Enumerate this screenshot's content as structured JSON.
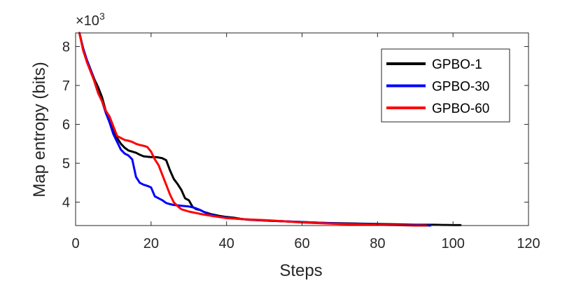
{
  "chart_data": {
    "type": "line",
    "title": "",
    "xlabel": "Steps",
    "ylabel": "Map entropy (bits)",
    "y_multiplier_label": "×10",
    "y_multiplier_exponent": "3",
    "xlim": [
      0,
      120
    ],
    "ylim": [
      3.4,
      8.35
    ],
    "x_ticks": [
      0,
      20,
      40,
      60,
      80,
      100,
      120
    ],
    "y_ticks": [
      4,
      5,
      6,
      7,
      8
    ],
    "grid": false,
    "legend_position": "top-right",
    "series": [
      {
        "name": "GPBO-1",
        "color": "#000000",
        "x": [
          1,
          2,
          3,
          4,
          5,
          6,
          7,
          8,
          9,
          10,
          11,
          12,
          13,
          14,
          15,
          16,
          17,
          18,
          19,
          20,
          21,
          22,
          23,
          24,
          25,
          26,
          27,
          28,
          29,
          30,
          31,
          32,
          33,
          34,
          35,
          36,
          38,
          40,
          42,
          44,
          46,
          48,
          50,
          55,
          60,
          65,
          70,
          75,
          80,
          85,
          90,
          95,
          100,
          102
        ],
        "y": [
          8.35,
          7.95,
          7.65,
          7.4,
          7.15,
          6.95,
          6.7,
          6.35,
          6.1,
          5.85,
          5.65,
          5.5,
          5.4,
          5.33,
          5.3,
          5.27,
          5.22,
          5.18,
          5.17,
          5.16,
          5.16,
          5.15,
          5.13,
          5.08,
          4.82,
          4.6,
          4.47,
          4.32,
          4.1,
          4.05,
          3.88,
          3.82,
          3.8,
          3.75,
          3.72,
          3.69,
          3.65,
          3.62,
          3.6,
          3.57,
          3.55,
          3.54,
          3.53,
          3.51,
          3.49,
          3.47,
          3.46,
          3.45,
          3.44,
          3.43,
          3.42,
          3.42,
          3.41,
          3.41
        ]
      },
      {
        "name": "GPBO-30",
        "color": "#0000ff",
        "x": [
          1,
          2,
          3,
          4,
          5,
          6,
          7,
          8,
          9,
          10,
          11,
          12,
          13,
          14,
          15,
          16,
          17,
          18,
          19,
          20,
          21,
          22,
          23,
          24,
          25,
          26,
          27,
          28,
          29,
          30,
          31,
          32,
          33,
          35,
          37,
          40,
          45,
          50,
          55,
          60,
          65,
          70,
          75,
          80,
          85,
          90,
          94
        ],
        "y": [
          8.35,
          7.95,
          7.65,
          7.4,
          7.1,
          6.8,
          6.6,
          6.3,
          6.05,
          5.75,
          5.55,
          5.35,
          5.25,
          5.2,
          5.1,
          4.65,
          4.5,
          4.45,
          4.42,
          4.38,
          4.15,
          4.1,
          4.05,
          3.98,
          3.95,
          3.93,
          3.92,
          3.91,
          3.9,
          3.89,
          3.87,
          3.84,
          3.8,
          3.7,
          3.65,
          3.6,
          3.56,
          3.53,
          3.51,
          3.49,
          3.47,
          3.45,
          3.44,
          3.43,
          3.42,
          3.41,
          3.4
        ]
      },
      {
        "name": "GPBO-60",
        "color": "#ff0000",
        "x": [
          1,
          2,
          3,
          4,
          5,
          6,
          7,
          8,
          9,
          10,
          11,
          12,
          13,
          14,
          15,
          16,
          17,
          18,
          19,
          20,
          21,
          22,
          23,
          24,
          25,
          26,
          27,
          28,
          30,
          32,
          34,
          36,
          38,
          40,
          45,
          50,
          55,
          60,
          65,
          70,
          75,
          80,
          85,
          90,
          93
        ],
        "y": [
          8.35,
          7.9,
          7.6,
          7.35,
          7.1,
          6.8,
          6.6,
          6.35,
          6.2,
          5.95,
          5.7,
          5.65,
          5.6,
          5.58,
          5.55,
          5.5,
          5.47,
          5.45,
          5.42,
          5.3,
          5.1,
          4.95,
          4.7,
          4.45,
          4.2,
          4.0,
          3.9,
          3.82,
          3.76,
          3.72,
          3.68,
          3.65,
          3.62,
          3.59,
          3.56,
          3.54,
          3.51,
          3.48,
          3.46,
          3.44,
          3.43,
          3.42,
          3.41,
          3.4,
          3.4
        ]
      }
    ]
  }
}
